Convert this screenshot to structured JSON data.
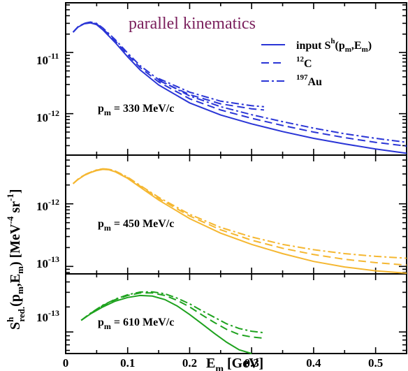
{
  "colors": {
    "top": "#2a35d6",
    "middle": "#f5b731",
    "bottom": "#1ea21e",
    "title": "#7a1f5c"
  },
  "annotations": {
    "title": "parallel kinematics",
    "panel_labels": [
      "330 MeV/c",
      "450 MeV/c",
      "610 MeV/c"
    ],
    "p_symbol": "p",
    "p_sub": "m",
    "p_eq": " = "
  },
  "axes": {
    "xlabel_main": "E",
    "xlabel_sub": "m",
    "xlabel_unit": " [GeV]",
    "ylabel": {
      "s": "S",
      "sup": "h",
      "sub": "red.",
      "args": "(p",
      "args_sub1": "m",
      "args_mid": ",E",
      "args_sub2": "m",
      "args_end": ")  [MeV",
      "exp1": "-4",
      "mid": " sr",
      "exp2": "-1",
      "end": "]"
    },
    "x_ticks": [
      "0",
      "0.1",
      "0.2",
      "0.3",
      "0.4",
      "0.5"
    ],
    "y_ticks": [
      [
        {
          "base": "10",
          "exp": "-11"
        },
        {
          "base": "10",
          "exp": "-12"
        }
      ],
      [
        {
          "base": "10",
          "exp": "-12"
        },
        {
          "base": "10",
          "exp": "-13"
        }
      ],
      [
        {
          "base": "10",
          "exp": "-13"
        }
      ]
    ]
  },
  "legend": {
    "items": [
      {
        "label": "input  S",
        "sup": "h",
        "tail": "(p",
        "sub1": "m",
        "mid": ",E",
        "sub2": "m",
        "end": ")"
      },
      {
        "label": "C",
        "pre_sup": "12"
      },
      {
        "label": "Au",
        "pre_sup": "197"
      }
    ]
  },
  "chart_data": {
    "type": "line",
    "xlabel": "E_m [GeV]",
    "ylabel": "S^h_red.(p_m,E_m) [MeV^-4 sr^-1]",
    "xlim": [
      0,
      0.55
    ],
    "panels": [
      {
        "label": "p_m = 330 MeV/c",
        "ylog": true,
        "ylim": [
          2.1e-13,
          6.5e-11
        ],
        "series": [
          {
            "name": "input S^h(p_m,E_m)",
            "style": "solid",
            "x": [
              0.012,
              0.02,
              0.03,
              0.04,
              0.05,
              0.06,
              0.08,
              0.1,
              0.12,
              0.15,
              0.2,
              0.25,
              0.3,
              0.35,
              0.4,
              0.45,
              0.5,
              0.55
            ],
            "y": [
              2.15e-11,
              2.6e-11,
              2.95e-11,
              3.05e-11,
              2.85e-11,
              2.35e-11,
              1.45e-11,
              8.5e-12,
              5.2e-12,
              2.95e-12,
              1.5e-12,
              9.5e-13,
              6.8e-13,
              5.1e-13,
              3.95e-13,
              3.2e-13,
              2.65e-13,
              2.25e-13
            ]
          },
          {
            "name": "12C",
            "style": "dashed",
            "x": [
              0.012,
              0.02,
              0.03,
              0.04,
              0.05,
              0.06,
              0.08,
              0.1,
              0.12,
              0.15,
              0.2,
              0.25,
              0.3,
              0.35,
              0.4,
              0.45,
              0.5,
              0.55
            ],
            "y": [
              2.15e-11,
              2.62e-11,
              2.98e-11,
              3.1e-11,
              2.92e-11,
              2.45e-11,
              1.55e-11,
              9.2e-12,
              5.7e-12,
              3.3e-12,
              1.75e-12,
              1.15e-12,
              8.4e-13,
              6.4e-13,
              5e-13,
              4.05e-13,
              3.4e-13,
              2.95e-13
            ]
          },
          {
            "name": "197Au",
            "style": "dashdot",
            "x": [
              0.012,
              0.02,
              0.03,
              0.04,
              0.05,
              0.06,
              0.08,
              0.1,
              0.12,
              0.15,
              0.2,
              0.25,
              0.3,
              0.35,
              0.4,
              0.45,
              0.5,
              0.55
            ],
            "y": [
              2.15e-11,
              2.64e-11,
              3e-11,
              3.15e-11,
              2.98e-11,
              2.52e-11,
              1.62e-11,
              9.8e-12,
              6.1e-12,
              3.6e-12,
              1.95e-12,
              1.3e-12,
              9.6e-13,
              7.4e-13,
              5.8e-13,
              4.7e-13,
              3.95e-13,
              3.4e-13
            ]
          },
          {
            "name": "",
            "style": "dashdot",
            "x": [
              0.15,
              0.2,
              0.25,
              0.3,
              0.32
            ],
            "y": [
              3.75e-12,
              2.25e-12,
              1.6e-12,
              1.35e-12,
              1.3e-12
            ]
          },
          {
            "name": "",
            "style": "dashed",
            "x": [
              0.15,
              0.2,
              0.25,
              0.3,
              0.32
            ],
            "y": [
              3.5e-12,
              2.05e-12,
              1.45e-12,
              1.2e-12,
              1.15e-12
            ]
          }
        ]
      },
      {
        "label": "p_m = 450 MeV/c",
        "ylog": true,
        "ylim": [
          7.6e-14,
          6e-12
        ],
        "series": [
          {
            "name": "input S^h(p_m,E_m)",
            "style": "solid",
            "x": [
              0.012,
              0.02,
              0.03,
              0.04,
              0.05,
              0.06,
              0.07,
              0.08,
              0.1,
              0.12,
              0.15,
              0.2,
              0.25,
              0.3,
              0.35,
              0.4,
              0.45,
              0.5,
              0.55
            ],
            "y": [
              2.1e-12,
              2.45e-12,
              2.85e-12,
              3.15e-12,
              3.4e-12,
              3.55e-12,
              3.5e-12,
              3.25e-12,
              2.55e-12,
              1.85e-12,
              1.15e-12,
              5.8e-13,
              3.4e-13,
              2.25e-13,
              1.6e-13,
              1.2e-13,
              9.8e-14,
              8.5e-14,
              7.8e-14
            ]
          },
          {
            "name": "12C",
            "style": "dashed",
            "x": [
              0.012,
              0.02,
              0.03,
              0.04,
              0.05,
              0.06,
              0.07,
              0.08,
              0.1,
              0.12,
              0.15,
              0.2,
              0.25,
              0.3,
              0.35,
              0.4,
              0.45,
              0.5,
              0.55
            ],
            "y": [
              2.1e-12,
              2.47e-12,
              2.88e-12,
              3.18e-12,
              3.45e-12,
              3.6e-12,
              3.55e-12,
              3.3e-12,
              2.62e-12,
              1.92e-12,
              1.22e-12,
              6.4e-13,
              3.85e-13,
              2.62e-13,
              1.95e-13,
              1.55e-13,
              1.3e-13,
              1.15e-13,
              1.05e-13
            ]
          },
          {
            "name": "197Au",
            "style": "dashdot",
            "x": [
              0.012,
              0.02,
              0.03,
              0.04,
              0.05,
              0.06,
              0.07,
              0.08,
              0.1,
              0.12,
              0.15,
              0.2,
              0.25,
              0.3,
              0.35,
              0.4,
              0.45,
              0.5,
              0.55
            ],
            "y": [
              2.1e-12,
              2.48e-12,
              2.9e-12,
              3.2e-12,
              3.48e-12,
              3.63e-12,
              3.58e-12,
              3.34e-12,
              2.67e-12,
              1.97e-12,
              1.27e-12,
              6.8e-13,
              4.2e-13,
              2.95e-13,
              2.25e-13,
              1.85e-13,
              1.6e-13,
              1.45e-13,
              1.35e-13
            ]
          }
        ]
      },
      {
        "label": "p_m = 610 MeV/c",
        "ylog": true,
        "ylim": [
          5.5e-14,
          5e-13
        ],
        "series": [
          {
            "name": "input S^h(p_m,E_m)",
            "style": "solid",
            "x": [
              0.025,
              0.04,
              0.06,
              0.08,
              0.1,
              0.12,
              0.14,
              0.16,
              0.18,
              0.2,
              0.22,
              0.24,
              0.26,
              0.28,
              0.3
            ],
            "y": [
              1.38e-13,
              1.65e-13,
              2e-13,
              2.35e-13,
              2.6e-13,
              2.75e-13,
              2.7e-13,
              2.45e-13,
              2.05e-13,
              1.62e-13,
              1.25e-13,
              9.6e-14,
              7.5e-14,
              6.1e-14,
              5.5e-14
            ]
          },
          {
            "name": "12C",
            "style": "dashed",
            "x": [
              0.025,
              0.04,
              0.06,
              0.08,
              0.1,
              0.12,
              0.14,
              0.16,
              0.18,
              0.2,
              0.22,
              0.24,
              0.26,
              0.28,
              0.3,
              0.32
            ],
            "y": [
              1.38e-13,
              1.67e-13,
              2.08e-13,
              2.45e-13,
              2.75e-13,
              2.95e-13,
              2.95e-13,
              2.75e-13,
              2.4e-13,
              2e-13,
              1.6e-13,
              1.3e-13,
              1.07e-13,
              9.3e-14,
              8.7e-14,
              8.4e-14
            ]
          },
          {
            "name": "197Au",
            "style": "dashdot",
            "x": [
              0.025,
              0.04,
              0.06,
              0.08,
              0.1,
              0.12,
              0.14,
              0.16,
              0.18,
              0.2,
              0.22,
              0.24,
              0.26,
              0.28,
              0.3,
              0.32
            ],
            "y": [
              1.38e-13,
              1.68e-13,
              2.1e-13,
              2.48e-13,
              2.8e-13,
              3.02e-13,
              3.04e-13,
              2.88e-13,
              2.55e-13,
              2.18e-13,
              1.8e-13,
              1.5e-13,
              1.25e-13,
              1.1e-13,
              1.02e-13,
              9.8e-14
            ]
          }
        ]
      }
    ]
  }
}
